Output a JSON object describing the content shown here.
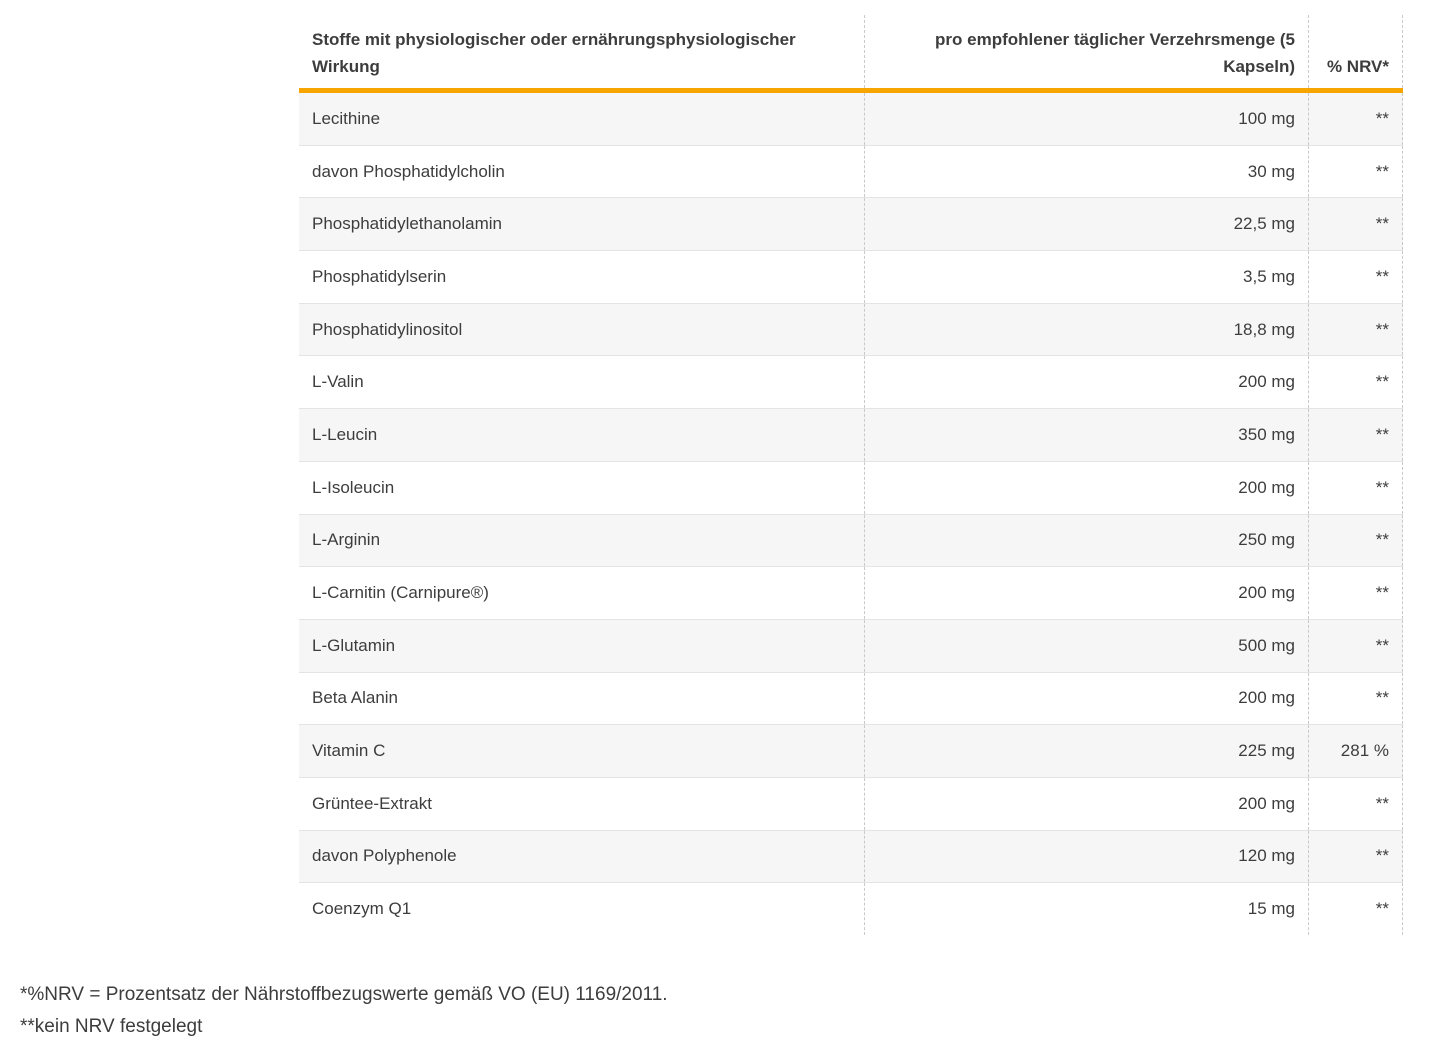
{
  "colors": {
    "accent": "#F7A500",
    "row_alt": "#F6F6F6",
    "dashed_line": "#C9C9C9",
    "text": "#3D3D3D"
  },
  "table": {
    "headers": {
      "substances": "Stoffe mit physiologischer oder ernährungsphysiologischer Wirkung",
      "amount": "pro empfohlener täglicher Verzehrsmenge (5 Kapseln)",
      "nrv": "% NRV*"
    },
    "rows": [
      {
        "name": "Lecithine",
        "amount": "100 mg",
        "nrv": "**"
      },
      {
        "name": "davon Phosphatidylcholin",
        "amount": "30 mg",
        "nrv": "**"
      },
      {
        "name": "Phosphatidylethanolamin",
        "amount": "22,5 mg",
        "nrv": "**"
      },
      {
        "name": "Phosphatidylserin",
        "amount": "3,5 mg",
        "nrv": "**"
      },
      {
        "name": "Phosphatidylinositol",
        "amount": "18,8 mg",
        "nrv": "**"
      },
      {
        "name": "L-Valin",
        "amount": "200 mg",
        "nrv": "**"
      },
      {
        "name": "L-Leucin",
        "amount": "350 mg",
        "nrv": "**"
      },
      {
        "name": "L-Isoleucin",
        "amount": "200 mg",
        "nrv": "**"
      },
      {
        "name": "L-Arginin",
        "amount": "250 mg",
        "nrv": "**"
      },
      {
        "name": "L-Carnitin (Carnipure®)",
        "amount": "200 mg",
        "nrv": "**"
      },
      {
        "name": "L-Glutamin",
        "amount": "500 mg",
        "nrv": "**"
      },
      {
        "name": "Beta Alanin",
        "amount": "200 mg",
        "nrv": "**"
      },
      {
        "name": "Vitamin C",
        "amount": "225 mg",
        "nrv": "281 %"
      },
      {
        "name": "Grüntee-Extrakt",
        "amount": "200 mg",
        "nrv": "**"
      },
      {
        "name": "davon Polyphenole",
        "amount": "120 mg",
        "nrv": "**"
      },
      {
        "name": "Coenzym Q1",
        "amount": "15 mg",
        "nrv": "**"
      }
    ]
  },
  "footnotes": [
    "*%NRV = Prozentsatz der Nährstoffbezugswerte gemäß VO (EU) 1169/2011.",
    "**kein NRV festgelegt"
  ]
}
